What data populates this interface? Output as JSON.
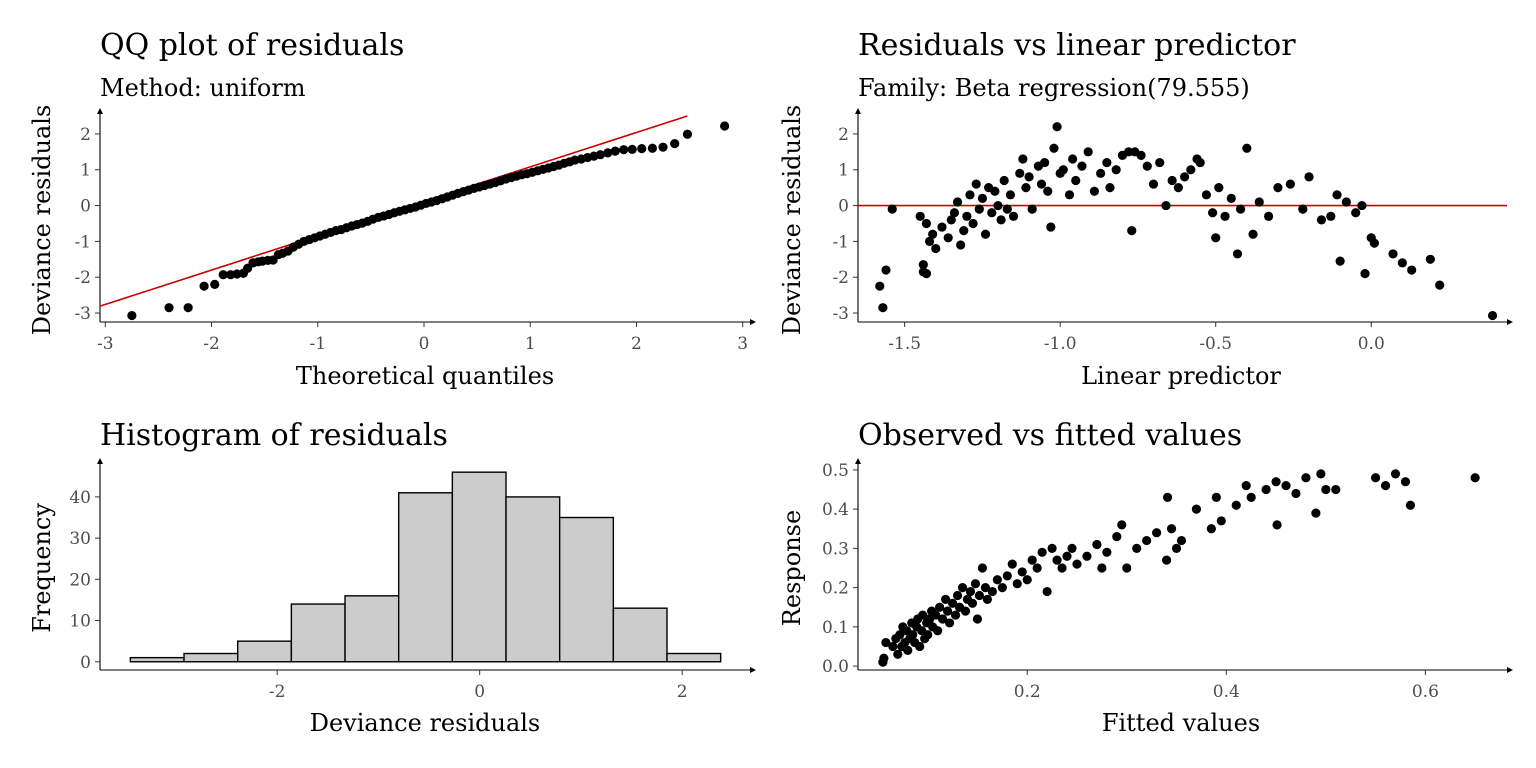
{
  "colors": {
    "point": "#000000",
    "reference_line": "#cc0000",
    "bar_fill": "#cccccc",
    "bar_stroke": "#000000",
    "tick_text": "#4d4d4d"
  },
  "chart_data": [
    {
      "id": "qq",
      "type": "scatter",
      "title": "QQ plot of residuals",
      "subtitle": "Method: uniform",
      "xlabel": "Theoretical quantiles",
      "ylabel": "Deviance residuals",
      "xlim": [
        -3.05,
        3.05
      ],
      "ylim": [
        -3.25,
        2.5
      ],
      "xticks": [
        -3,
        -2,
        -1,
        0,
        1,
        2,
        3
      ],
      "xtick_labels": [
        "-3",
        "-2",
        "-1",
        "0",
        "1",
        "2",
        "3"
      ],
      "yticks": [
        -3,
        -2,
        -1,
        0,
        1,
        2
      ],
      "ytick_labels": [
        "-3",
        "-2",
        "-1",
        "0",
        "1",
        "2"
      ],
      "reference_line": {
        "intercept": 0.12,
        "slope": 0.96
      },
      "points": [
        [
          -2.75,
          -3.07
        ],
        [
          -2.4,
          -2.85
        ],
        [
          -2.22,
          -2.85
        ],
        [
          -2.07,
          -2.25
        ],
        [
          -1.97,
          -2.2
        ],
        [
          -1.89,
          -1.93
        ],
        [
          -1.82,
          -1.93
        ],
        [
          -1.76,
          -1.91
        ],
        [
          -1.7,
          -1.89
        ],
        [
          -1.66,
          -1.75
        ],
        [
          -1.61,
          -1.6
        ],
        [
          -1.56,
          -1.57
        ],
        [
          -1.52,
          -1.55
        ],
        [
          -1.47,
          -1.53
        ],
        [
          -1.42,
          -1.52
        ],
        [
          -1.37,
          -1.37
        ],
        [
          -1.33,
          -1.33
        ],
        [
          -1.28,
          -1.27
        ],
        [
          -1.23,
          -1.16
        ],
        [
          -1.18,
          -1.08
        ],
        [
          -1.13,
          -1.0
        ],
        [
          -1.08,
          -0.95
        ],
        [
          -1.03,
          -0.9
        ],
        [
          -0.98,
          -0.85
        ],
        [
          -0.93,
          -0.8
        ],
        [
          -0.88,
          -0.75
        ],
        [
          -0.83,
          -0.7
        ],
        [
          -0.78,
          -0.67
        ],
        [
          -0.73,
          -0.62
        ],
        [
          -0.68,
          -0.57
        ],
        [
          -0.63,
          -0.53
        ],
        [
          -0.58,
          -0.49
        ],
        [
          -0.53,
          -0.44
        ],
        [
          -0.48,
          -0.38
        ],
        [
          -0.43,
          -0.33
        ],
        [
          -0.38,
          -0.29
        ],
        [
          -0.33,
          -0.25
        ],
        [
          -0.28,
          -0.2
        ],
        [
          -0.23,
          -0.16
        ],
        [
          -0.18,
          -0.12
        ],
        [
          -0.13,
          -0.08
        ],
        [
          -0.08,
          -0.04
        ],
        [
          -0.03,
          0.01
        ],
        [
          0.02,
          0.06
        ],
        [
          0.07,
          0.1
        ],
        [
          0.12,
          0.14
        ],
        [
          0.17,
          0.19
        ],
        [
          0.22,
          0.24
        ],
        [
          0.27,
          0.29
        ],
        [
          0.32,
          0.34
        ],
        [
          0.37,
          0.39
        ],
        [
          0.42,
          0.43
        ],
        [
          0.47,
          0.48
        ],
        [
          0.52,
          0.52
        ],
        [
          0.57,
          0.56
        ],
        [
          0.62,
          0.6
        ],
        [
          0.67,
          0.64
        ],
        [
          0.72,
          0.69
        ],
        [
          0.77,
          0.74
        ],
        [
          0.82,
          0.78
        ],
        [
          0.87,
          0.82
        ],
        [
          0.92,
          0.86
        ],
        [
          0.97,
          0.89
        ],
        [
          1.02,
          0.93
        ],
        [
          1.07,
          0.97
        ],
        [
          1.12,
          1.01
        ],
        [
          1.17,
          1.05
        ],
        [
          1.22,
          1.09
        ],
        [
          1.27,
          1.13
        ],
        [
          1.32,
          1.18
        ],
        [
          1.37,
          1.22
        ],
        [
          1.42,
          1.27
        ],
        [
          1.48,
          1.3
        ],
        [
          1.54,
          1.34
        ],
        [
          1.6,
          1.38
        ],
        [
          1.66,
          1.42
        ],
        [
          1.73,
          1.47
        ],
        [
          1.8,
          1.52
        ],
        [
          1.88,
          1.56
        ],
        [
          1.96,
          1.57
        ],
        [
          2.05,
          1.59
        ],
        [
          2.15,
          1.6
        ],
        [
          2.25,
          1.63
        ],
        [
          2.36,
          1.73
        ],
        [
          2.48,
          1.99
        ],
        [
          2.83,
          2.22
        ]
      ]
    },
    {
      "id": "resid-lp",
      "type": "scatter",
      "title": "Residuals vs linear predictor",
      "subtitle": "Family: Beta regression(79.555)",
      "xlabel": "Linear predictor",
      "ylabel": "Deviance residuals",
      "xlim": [
        -1.65,
        0.43
      ],
      "ylim": [
        -3.25,
        2.5
      ],
      "xticks": [
        -1.5,
        -1.0,
        -0.5,
        0.0
      ],
      "xtick_labels": [
        "-1.5",
        "-1.0",
        "-0.5",
        "0.0"
      ],
      "yticks": [
        -3,
        -2,
        -1,
        0,
        1,
        2
      ],
      "ytick_labels": [
        "-3",
        "-2",
        "-1",
        "0",
        "1",
        "2"
      ],
      "reference_hline": 0,
      "points": [
        [
          -1.57,
          -2.85
        ],
        [
          -1.58,
          -2.25
        ],
        [
          -1.56,
          -1.8
        ],
        [
          -1.54,
          -0.1
        ],
        [
          -1.44,
          -1.65
        ],
        [
          -1.43,
          -1.9
        ],
        [
          -1.44,
          -1.85
        ],
        [
          -1.42,
          -1.0
        ],
        [
          -1.43,
          -0.5
        ],
        [
          -1.45,
          -0.3
        ],
        [
          -1.41,
          -0.8
        ],
        [
          -1.4,
          -1.2
        ],
        [
          -1.38,
          -0.6
        ],
        [
          -1.36,
          -0.9
        ],
        [
          -1.35,
          -0.4
        ],
        [
          -1.34,
          -0.2
        ],
        [
          -1.33,
          0.1
        ],
        [
          -1.32,
          -1.1
        ],
        [
          -1.31,
          -0.7
        ],
        [
          -1.3,
          -0.3
        ],
        [
          -1.29,
          0.3
        ],
        [
          -1.28,
          -0.5
        ],
        [
          -1.27,
          0.6
        ],
        [
          -1.26,
          -0.1
        ],
        [
          -1.25,
          0.2
        ],
        [
          -1.24,
          -0.8
        ],
        [
          -1.23,
          0.5
        ],
        [
          -1.22,
          -0.2
        ],
        [
          -1.21,
          0.4
        ],
        [
          -1.2,
          0.0
        ],
        [
          -1.19,
          -0.4
        ],
        [
          -1.18,
          0.7
        ],
        [
          -1.17,
          -0.1
        ],
        [
          -1.16,
          0.3
        ],
        [
          -1.15,
          -0.3
        ],
        [
          -1.13,
          0.9
        ],
        [
          -1.12,
          1.3
        ],
        [
          -1.11,
          0.5
        ],
        [
          -1.1,
          0.8
        ],
        [
          -1.09,
          -0.1
        ],
        [
          -1.07,
          1.1
        ],
        [
          -1.06,
          0.6
        ],
        [
          -1.05,
          1.2
        ],
        [
          -1.04,
          0.4
        ],
        [
          -1.03,
          -0.6
        ],
        [
          -1.02,
          1.6
        ],
        [
          -1.01,
          2.2
        ],
        [
          -1.0,
          0.9
        ],
        [
          -0.99,
          1.0
        ],
        [
          -0.97,
          0.3
        ],
        [
          -0.96,
          1.3
        ],
        [
          -0.95,
          0.7
        ],
        [
          -0.93,
          1.1
        ],
        [
          -0.91,
          1.5
        ],
        [
          -0.89,
          0.4
        ],
        [
          -0.87,
          0.9
        ],
        [
          -0.85,
          1.2
        ],
        [
          -0.84,
          0.5
        ],
        [
          -0.82,
          1.0
        ],
        [
          -0.8,
          1.4
        ],
        [
          -0.78,
          1.5
        ],
        [
          -0.77,
          -0.7
        ],
        [
          -0.76,
          1.5
        ],
        [
          -0.74,
          1.4
        ],
        [
          -0.72,
          1.1
        ],
        [
          -0.7,
          0.6
        ],
        [
          -0.68,
          1.2
        ],
        [
          -0.66,
          0.0
        ],
        [
          -0.64,
          0.7
        ],
        [
          -0.62,
          0.5
        ],
        [
          -0.6,
          0.8
        ],
        [
          -0.58,
          1.0
        ],
        [
          -0.56,
          1.3
        ],
        [
          -0.55,
          1.2
        ],
        [
          -0.53,
          0.3
        ],
        [
          -0.51,
          -0.2
        ],
        [
          -0.5,
          -0.9
        ],
        [
          -0.49,
          0.5
        ],
        [
          -0.47,
          -0.3
        ],
        [
          -0.45,
          0.2
        ],
        [
          -0.43,
          -1.35
        ],
        [
          -0.42,
          -0.1
        ],
        [
          -0.4,
          1.6
        ],
        [
          -0.38,
          -0.8
        ],
        [
          -0.36,
          0.1
        ],
        [
          -0.33,
          -0.3
        ],
        [
          -0.3,
          0.5
        ],
        [
          -0.26,
          0.6
        ],
        [
          -0.22,
          -0.1
        ],
        [
          -0.2,
          0.8
        ],
        [
          -0.16,
          -0.4
        ],
        [
          -0.13,
          -0.3
        ],
        [
          -0.11,
          0.3
        ],
        [
          -0.1,
          -1.55
        ],
        [
          -0.08,
          0.1
        ],
        [
          -0.05,
          -0.2
        ],
        [
          -0.03,
          0.0
        ],
        [
          -0.02,
          -1.9
        ],
        [
          0.0,
          -0.9
        ],
        [
          0.01,
          -1.05
        ],
        [
          0.07,
          -1.35
        ],
        [
          0.1,
          -1.6
        ],
        [
          0.13,
          -1.8
        ],
        [
          0.19,
          -1.5
        ],
        [
          0.22,
          -2.22
        ],
        [
          0.39,
          -3.07
        ]
      ]
    },
    {
      "id": "histogram",
      "type": "bar",
      "title": "Histogram of residuals",
      "xlabel": "Deviance residuals",
      "ylabel": "Frequency",
      "xlim": [
        -3.75,
        2.65
      ],
      "ylim": [
        -2,
        47.5
      ],
      "xticks": [
        -2,
        0,
        2
      ],
      "xtick_labels": [
        "-2",
        "0",
        "2"
      ],
      "yticks": [
        0,
        10,
        20,
        30,
        40
      ],
      "ytick_labels": [
        "0",
        "10",
        "20",
        "30",
        "40"
      ],
      "bin_edges": [
        -3.45,
        -2.92,
        -2.39,
        -1.86,
        -1.33,
        -0.8,
        -0.27,
        0.26,
        0.79,
        1.32,
        1.85,
        2.38
      ],
      "values": [
        1,
        2,
        5,
        14,
        16,
        41,
        46,
        40,
        35,
        13,
        2
      ]
    },
    {
      "id": "obs-fitted",
      "type": "scatter",
      "title": "Observed vs fitted values",
      "xlabel": "Fitted values",
      "ylabel": "Response",
      "xlim": [
        0.03,
        0.68
      ],
      "ylim": [
        -0.01,
        0.51
      ],
      "xticks": [
        0.2,
        0.4,
        0.6
      ],
      "xtick_labels": [
        "0.2",
        "0.4",
        "0.6"
      ],
      "yticks": [
        0.0,
        0.1,
        0.2,
        0.3,
        0.4,
        0.5
      ],
      "ytick_labels": [
        "0.0",
        "0.1",
        "0.2",
        "0.3",
        "0.4",
        "0.5"
      ],
      "points": [
        [
          0.055,
          0.01
        ],
        [
          0.056,
          0.02
        ],
        [
          0.058,
          0.06
        ],
        [
          0.065,
          0.05
        ],
        [
          0.068,
          0.07
        ],
        [
          0.07,
          0.03
        ],
        [
          0.072,
          0.08
        ],
        [
          0.074,
          0.05
        ],
        [
          0.075,
          0.1
        ],
        [
          0.077,
          0.06
        ],
        [
          0.079,
          0.09
        ],
        [
          0.08,
          0.04
        ],
        [
          0.082,
          0.07
        ],
        [
          0.084,
          0.11
        ],
        [
          0.085,
          0.08
        ],
        [
          0.087,
          0.06
        ],
        [
          0.089,
          0.1
        ],
        [
          0.09,
          0.12
        ],
        [
          0.092,
          0.05
        ],
        [
          0.094,
          0.09
        ],
        [
          0.095,
          0.13
        ],
        [
          0.097,
          0.07
        ],
        [
          0.099,
          0.11
        ],
        [
          0.1,
          0.08
        ],
        [
          0.102,
          0.12
        ],
        [
          0.104,
          0.14
        ],
        [
          0.105,
          0.1
        ],
        [
          0.108,
          0.13
        ],
        [
          0.11,
          0.09
        ],
        [
          0.112,
          0.15
        ],
        [
          0.115,
          0.12
        ],
        [
          0.118,
          0.17
        ],
        [
          0.12,
          0.14
        ],
        [
          0.122,
          0.11
        ],
        [
          0.125,
          0.16
        ],
        [
          0.128,
          0.13
        ],
        [
          0.13,
          0.18
        ],
        [
          0.132,
          0.15
        ],
        [
          0.135,
          0.2
        ],
        [
          0.138,
          0.14
        ],
        [
          0.14,
          0.17
        ],
        [
          0.143,
          0.19
        ],
        [
          0.145,
          0.16
        ],
        [
          0.148,
          0.21
        ],
        [
          0.15,
          0.12
        ],
        [
          0.152,
          0.18
        ],
        [
          0.155,
          0.25
        ],
        [
          0.158,
          0.2
        ],
        [
          0.16,
          0.17
        ],
        [
          0.165,
          0.19
        ],
        [
          0.17,
          0.22
        ],
        [
          0.175,
          0.2
        ],
        [
          0.18,
          0.23
        ],
        [
          0.185,
          0.26
        ],
        [
          0.19,
          0.21
        ],
        [
          0.195,
          0.24
        ],
        [
          0.2,
          0.22
        ],
        [
          0.205,
          0.27
        ],
        [
          0.21,
          0.25
        ],
        [
          0.215,
          0.29
        ],
        [
          0.22,
          0.19
        ],
        [
          0.225,
          0.3
        ],
        [
          0.23,
          0.27
        ],
        [
          0.235,
          0.25
        ],
        [
          0.24,
          0.28
        ],
        [
          0.245,
          0.3
        ],
        [
          0.25,
          0.26
        ],
        [
          0.26,
          0.28
        ],
        [
          0.27,
          0.31
        ],
        [
          0.275,
          0.25
        ],
        [
          0.28,
          0.29
        ],
        [
          0.29,
          0.33
        ],
        [
          0.295,
          0.36
        ],
        [
          0.3,
          0.25
        ],
        [
          0.31,
          0.3
        ],
        [
          0.32,
          0.32
        ],
        [
          0.33,
          0.34
        ],
        [
          0.34,
          0.27
        ],
        [
          0.341,
          0.43
        ],
        [
          0.345,
          0.35
        ],
        [
          0.35,
          0.3
        ],
        [
          0.355,
          0.32
        ],
        [
          0.37,
          0.4
        ],
        [
          0.385,
          0.35
        ],
        [
          0.39,
          0.43
        ],
        [
          0.395,
          0.37
        ],
        [
          0.41,
          0.41
        ],
        [
          0.42,
          0.46
        ],
        [
          0.425,
          0.43
        ],
        [
          0.44,
          0.45
        ],
        [
          0.45,
          0.47
        ],
        [
          0.451,
          0.36
        ],
        [
          0.46,
          0.46
        ],
        [
          0.47,
          0.44
        ],
        [
          0.48,
          0.48
        ],
        [
          0.49,
          0.39
        ],
        [
          0.495,
          0.49
        ],
        [
          0.5,
          0.45
        ],
        [
          0.51,
          0.45
        ],
        [
          0.55,
          0.48
        ],
        [
          0.56,
          0.46
        ],
        [
          0.57,
          0.49
        ],
        [
          0.58,
          0.47
        ],
        [
          0.585,
          0.41
        ],
        [
          0.65,
          0.48
        ]
      ]
    }
  ]
}
